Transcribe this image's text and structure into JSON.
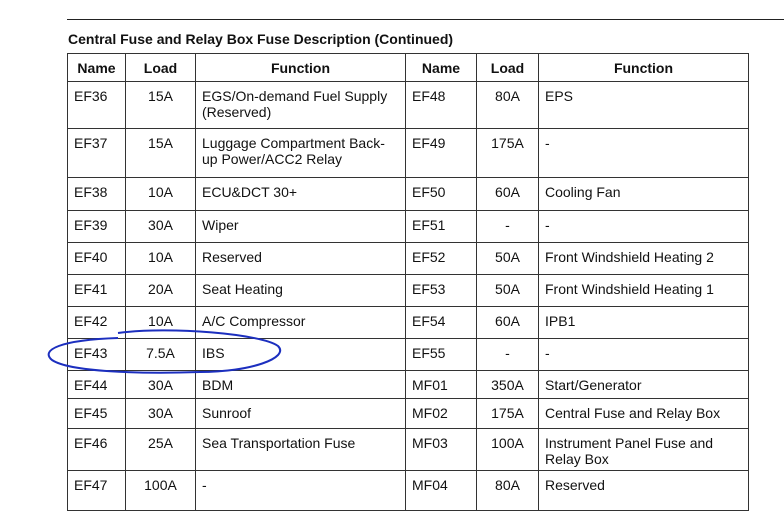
{
  "header": {
    "title": "Central Fuse and Relay Box Fuse Description (Continued)"
  },
  "table": {
    "header": [
      "Name",
      "Load",
      "Function",
      "Name",
      "Load",
      "Function"
    ],
    "rows": [
      [
        "EF36",
        "15A",
        "EGS/On-demand Fuel Supply (Reserved)",
        "EF48",
        "80A",
        "EPS"
      ],
      [
        "EF37",
        "15A",
        "Luggage Compartment Back-up Power/ACC2 Relay",
        "EF49",
        "175A",
        "-"
      ],
      [
        "EF38",
        "10A",
        "ECU&DCT 30+",
        "EF50",
        "60A",
        "Cooling Fan"
      ],
      [
        "EF39",
        "30A",
        "Wiper",
        "EF51",
        "-",
        "-"
      ],
      [
        "EF40",
        "10A",
        "Reserved",
        "EF52",
        "50A",
        "Front Windshield Heating 2"
      ],
      [
        "EF41",
        "20A",
        "Seat Heating",
        "EF53",
        "50A",
        "Front Windshield Heating 1"
      ],
      [
        "EF42",
        "10A",
        "A/C Compressor",
        "EF54",
        "60A",
        "IPB1"
      ],
      [
        "EF43",
        "7.5A",
        "IBS",
        "EF55",
        "-",
        "-"
      ],
      [
        "EF44",
        "30A",
        "BDM",
        "MF01",
        "350A",
        "Start/Generator"
      ],
      [
        "EF45",
        "30A",
        "Sunroof",
        "MF02",
        "175A",
        "Central Fuse and Relay Box"
      ],
      [
        "EF46",
        "25A",
        "Sea Transportation Fuse",
        "MF03",
        "100A",
        "Instrument Panel Fuse and Relay Box"
      ],
      [
        "EF47",
        "100A",
        "-",
        "MF04",
        "80A",
        "Reserved"
      ]
    ]
  }
}
